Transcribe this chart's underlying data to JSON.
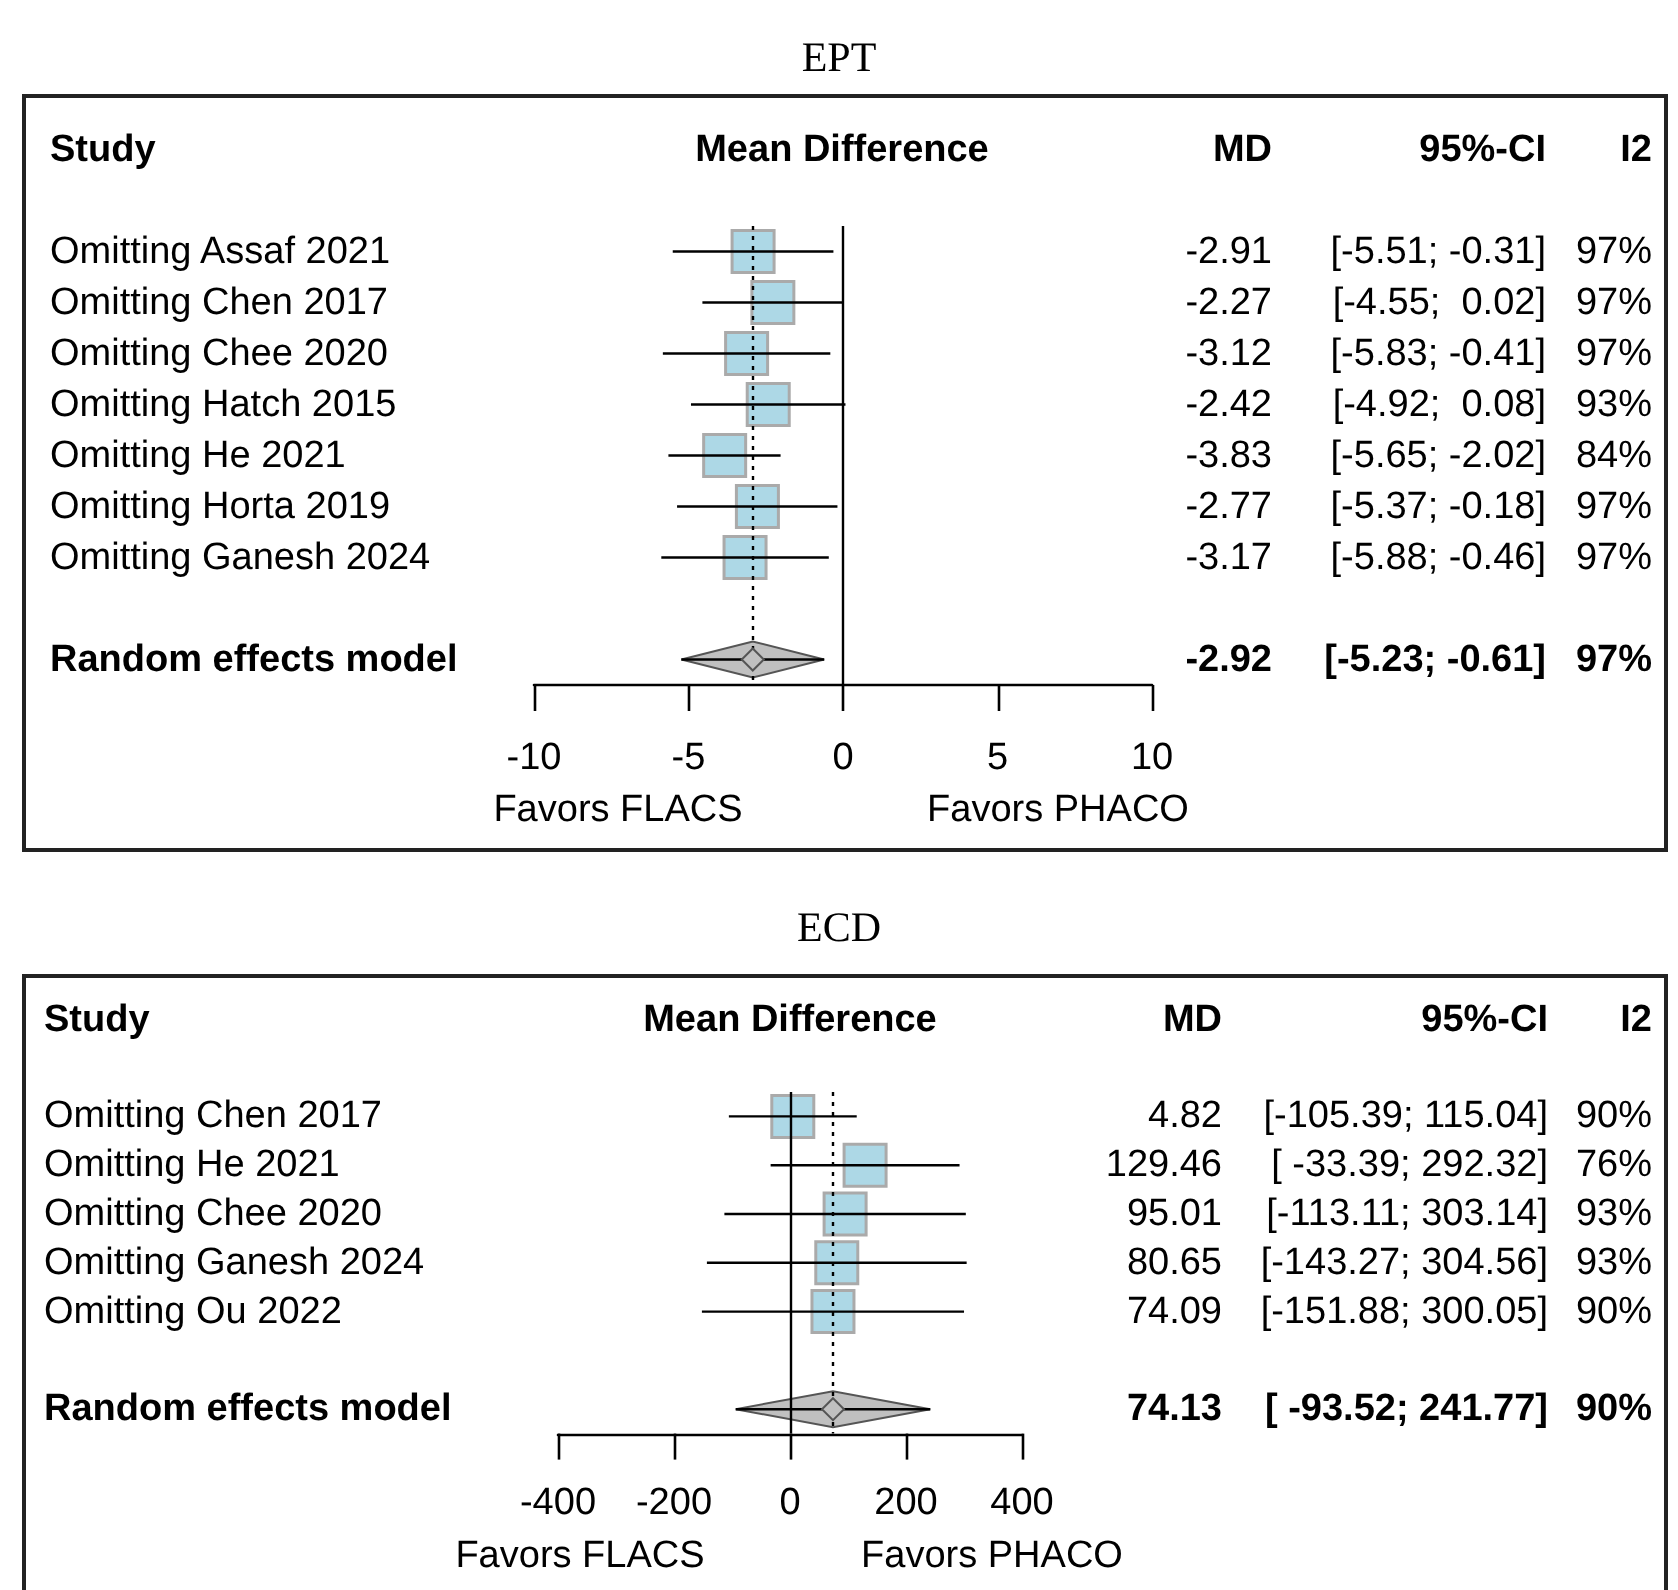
{
  "chart_data": [
    {
      "type": "scatter",
      "title": "EPT",
      "orientation": "horizontal",
      "categories": [
        "Omitting Assaf 2021",
        "Omitting Chen 2017",
        "Omitting Chee 2020",
        "Omitting Hatch 2015",
        "Omitting He 2021",
        "Omitting Horta 2019",
        "Omitting Ganesh 2024",
        "Random effects model"
      ],
      "xlim": [
        -10,
        10
      ],
      "xticks": [
        -10,
        -5,
        0,
        5,
        10
      ],
      "ref_lines": [
        {
          "axis": "x",
          "value": 0,
          "line_style": "solid",
          "color": "#000000"
        },
        {
          "axis": "x",
          "value": -2.92,
          "line_style": "dotted",
          "color": "#000000"
        }
      ],
      "annotations": [
        "Study",
        "Mean Difference",
        "MD",
        "95%-CI",
        "I2",
        "Favors FLACS",
        "Favors PHACO",
        "-2.92",
        "[-5.51; -0.31]",
        "[-4.55;  0.02]",
        "[-5.83; -0.41]",
        "[-4.92;  0.08]",
        "[-5.65; -2.02]",
        "[-5.37; -0.18]",
        "[-5.88; -0.46]",
        "[-5.23; -0.61]",
        "97%",
        "97%",
        "97%",
        "93%",
        "84%",
        "97%",
        "97%",
        "97%"
      ],
      "series": [
        {
          "color": "#add8e6",
          "marker": "square",
          "values": [
            -2.91,
            -2.27,
            -3.12,
            -2.42,
            -3.83,
            -2.77,
            -3.17,
            null
          ],
          "errors": [
            [
              -5.51,
              -0.31
            ],
            [
              -4.55,
              0.02
            ],
            [
              -5.83,
              -0.41
            ],
            [
              -4.92,
              0.08
            ],
            [
              -5.65,
              -2.02
            ],
            [
              -5.37,
              -0.18
            ],
            [
              -5.88,
              -0.46
            ],
            null
          ],
          "value_labels": [
            "-2.91",
            "-2.27",
            "-3.12",
            "-2.42",
            "-3.83",
            "-2.77",
            "-3.17",
            null
          ]
        },
        {
          "color": "#c0c0c0",
          "marker": "diamond",
          "values": [
            null,
            null,
            null,
            null,
            null,
            null,
            null,
            -2.92
          ],
          "errors": [
            null,
            null,
            null,
            null,
            null,
            null,
            null,
            [
              -5.23,
              -0.61
            ]
          ]
        }
      ]
    },
    {
      "type": "scatter",
      "title": "ECD",
      "orientation": "horizontal",
      "categories": [
        "Omitting Chen 2017",
        "Omitting He 2021",
        "Omitting Chee 2020",
        "Omitting Ganesh 2024",
        "Omitting Ou 2022",
        "Random effects model"
      ],
      "xlim": [
        -400,
        400
      ],
      "xticks": [
        -400,
        -200,
        0,
        200,
        400
      ],
      "ref_lines": [
        {
          "axis": "x",
          "value": 0,
          "line_style": "solid",
          "color": "#000000"
        },
        {
          "axis": "x",
          "value": 74.13,
          "line_style": "dotted",
          "color": "#000000"
        }
      ],
      "annotations": [
        "Study",
        "Mean Difference",
        "MD",
        "95%-CI",
        "I2",
        "Favors FLACS",
        "Favors PHACO",
        "74.13",
        "[-105.39; 115.04]",
        "[ -33.39; 292.32]",
        "[-113.11; 303.14]",
        "[-143.27; 304.56]",
        "[-151.88; 300.05]",
        "[ -93.52; 241.77]",
        "90%",
        "76%",
        "93%",
        "93%",
        "90%",
        "90%"
      ],
      "series": [
        {
          "color": "#add8e6",
          "marker": "square",
          "values": [
            4.82,
            129.46,
            95.01,
            80.65,
            74.09,
            null
          ],
          "errors": [
            [
              -105.39,
              115.04
            ],
            [
              -33.39,
              292.32
            ],
            [
              -113.11,
              303.14
            ],
            [
              -143.27,
              304.56
            ],
            [
              -151.88,
              300.05
            ],
            null
          ],
          "value_labels": [
            "4.82",
            "129.46",
            "95.01",
            "80.65",
            "74.09",
            null
          ]
        },
        {
          "color": "#c0c0c0",
          "marker": "diamond",
          "values": [
            null,
            null,
            null,
            null,
            null,
            74.13
          ],
          "errors": [
            null,
            null,
            null,
            null,
            null,
            [
              -93.52,
              241.77
            ]
          ]
        }
      ]
    }
  ]
}
